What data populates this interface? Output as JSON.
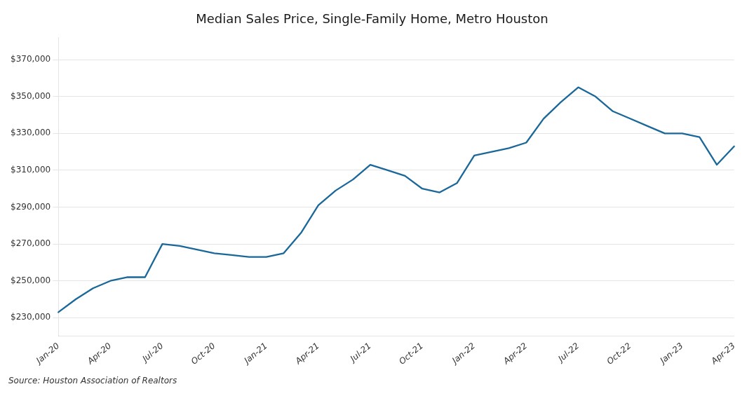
{
  "chart_data": {
    "type": "line",
    "title": "Median Sales Price, Single-Family Home, Metro Houston",
    "annotations": [
      "Source: Houston Association of Realtors"
    ],
    "categories": [
      "Jan-20",
      null,
      null,
      "Apr-20",
      null,
      null,
      "Jul-20",
      null,
      null,
      "Oct-20",
      null,
      null,
      "Jan-21",
      null,
      null,
      "Apr-21",
      null,
      null,
      "Jul-21",
      null,
      null,
      "Oct-21",
      null,
      null,
      "Jan-22",
      null,
      null,
      "Apr-22",
      null,
      null,
      "Jul-22",
      null,
      null,
      "Oct-22",
      null,
      null,
      "Jan-23",
      null,
      null,
      "Apr-23"
    ],
    "values": [
      233000,
      240000,
      246000,
      250000,
      252000,
      252000,
      270000,
      269000,
      267000,
      265000,
      264000,
      263000,
      263000,
      265000,
      276000,
      291000,
      299000,
      305000,
      313000,
      310000,
      307000,
      300000,
      298000,
      303000,
      318000,
      320000,
      322000,
      325000,
      338000,
      347000,
      355000,
      350000,
      342000,
      338000,
      334000,
      330000,
      330000,
      328000,
      313000,
      323000
    ],
    "color": "#1a6799",
    "ylim": [
      220000,
      382000
    ],
    "yticks": [
      {
        "value": 230000,
        "label": "$230,000"
      },
      {
        "value": 250000,
        "label": "$250,000"
      },
      {
        "value": 270000,
        "label": "$270,000"
      },
      {
        "value": 290000,
        "label": "$290,000"
      },
      {
        "value": 310000,
        "label": "$310,000"
      },
      {
        "value": 330000,
        "label": "$330,000"
      },
      {
        "value": 350000,
        "label": "$350,000"
      },
      {
        "value": 370000,
        "label": "$370,000"
      }
    ],
    "grid": "y"
  }
}
